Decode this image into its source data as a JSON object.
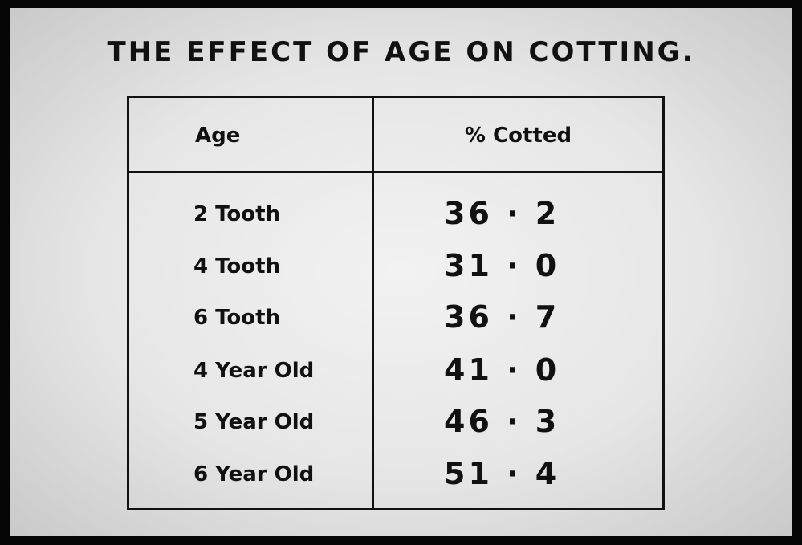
{
  "title": "THE EFFECT OF AGE ON COTTING.",
  "table": {
    "headers": [
      "Age",
      "% Cotted"
    ],
    "rows": [
      {
        "age": "2 Tooth",
        "value": "36 · 2"
      },
      {
        "age": "4 Tooth",
        "value": "31 · 0"
      },
      {
        "age": "6 Tooth",
        "value": "36 · 7"
      },
      {
        "age": "4 Year Old",
        "value": "41 · 0"
      },
      {
        "age": "5 Year Old",
        "value": "46 · 3"
      },
      {
        "age": "6 Year Old",
        "value": "51 · 4"
      }
    ]
  }
}
